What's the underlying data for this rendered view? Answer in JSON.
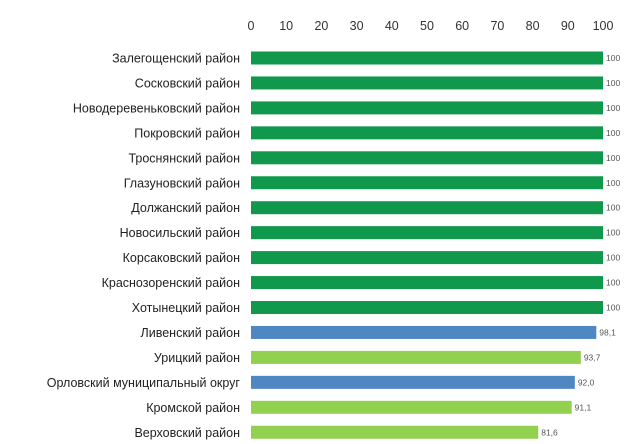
{
  "chart_data": {
    "type": "bar",
    "orientation": "horizontal",
    "xlim": [
      0,
      100
    ],
    "x_ticks": [
      "0",
      "10",
      "20",
      "30",
      "40",
      "50",
      "60",
      "70",
      "80",
      "90",
      "100"
    ],
    "x_axis_position": "top",
    "grid": false,
    "categories": [
      "Залегощенский район",
      "Сосковский район",
      "Новодеревеньковский район",
      "Покровский район",
      "Троснянский район",
      "Глазуновский район",
      "Должанский район",
      "Новосильский район",
      "Корсаковский район",
      "Краснозоренский район",
      "Хотынецкий район",
      "Ливенский район",
      "Урицкий район",
      "Орловский муниципальный округ",
      "Кромской район",
      "Верховский район"
    ],
    "values": [
      100,
      100,
      100,
      100,
      100,
      100,
      100,
      100,
      100,
      100,
      100,
      98.1,
      93.7,
      92.0,
      91.1,
      81.6
    ],
    "value_labels": [
      "100",
      "100",
      "100",
      "100",
      "100",
      "100",
      "100",
      "100",
      "100",
      "100",
      "100",
      "98,1",
      "93,7",
      "92,0",
      "91,1",
      "81,6"
    ],
    "bar_color_groups": [
      "dark-green",
      "dark-green",
      "dark-green",
      "dark-green",
      "dark-green",
      "dark-green",
      "dark-green",
      "dark-green",
      "dark-green",
      "dark-green",
      "dark-green",
      "blue",
      "light-green",
      "blue",
      "light-green",
      "light-green"
    ],
    "colors": {
      "dark-green": "#10984c",
      "blue": "#4f87c2",
      "light-green": "#92d050"
    }
  }
}
